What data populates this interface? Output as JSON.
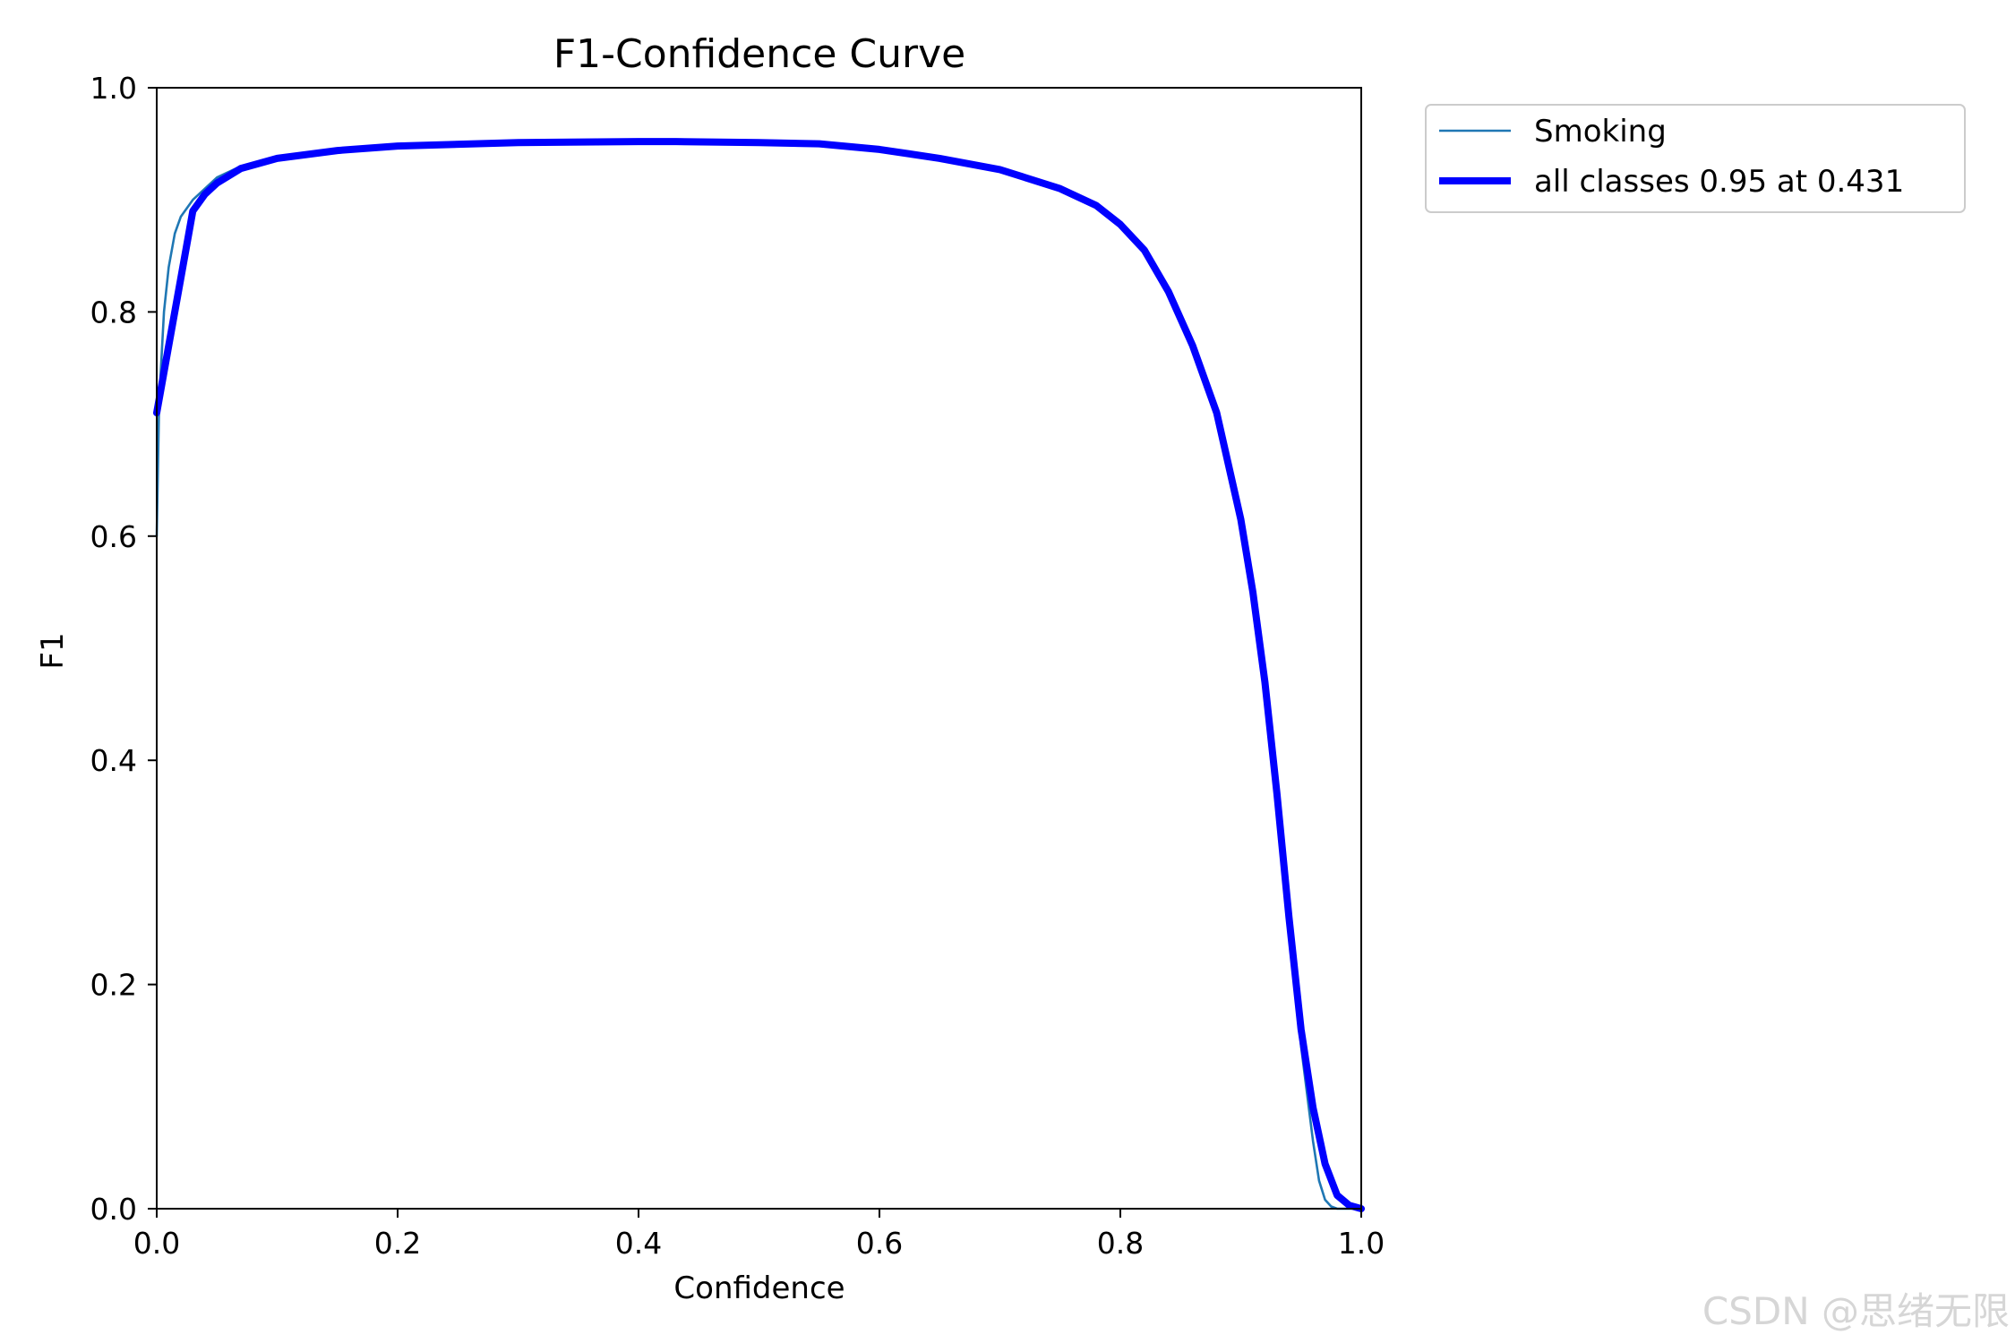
{
  "chart_data": {
    "type": "line",
    "title": "F1-Confidence Curve",
    "xlabel": "Confidence",
    "ylabel": "F1",
    "xlim": [
      0.0,
      1.0
    ],
    "ylim": [
      0.0,
      1.0
    ],
    "xticks": [
      "0.0",
      "0.2",
      "0.4",
      "0.6",
      "0.8",
      "1.0"
    ],
    "yticks": [
      "0.0",
      "0.2",
      "0.4",
      "0.6",
      "0.8",
      "1.0"
    ],
    "grid": false,
    "legend_position": "outside-top-right",
    "series": [
      {
        "name": "Smoking",
        "color": "#1f77b4",
        "linewidth": "thin",
        "x": [
          0.0,
          0.002,
          0.006,
          0.01,
          0.015,
          0.02,
          0.03,
          0.04,
          0.05,
          0.07,
          0.1,
          0.15,
          0.2,
          0.3,
          0.4,
          0.431,
          0.5,
          0.55,
          0.6,
          0.65,
          0.7,
          0.75,
          0.78,
          0.8,
          0.82,
          0.84,
          0.86,
          0.88,
          0.9,
          0.91,
          0.92,
          0.93,
          0.94,
          0.95,
          0.96,
          0.965,
          0.97,
          0.975,
          0.98,
          0.99,
          1.0
        ],
        "y": [
          0.6,
          0.72,
          0.8,
          0.84,
          0.87,
          0.885,
          0.9,
          0.91,
          0.92,
          0.93,
          0.938,
          0.945,
          0.948,
          0.951,
          0.952,
          0.952,
          0.951,
          0.95,
          0.945,
          0.937,
          0.927,
          0.91,
          0.895,
          0.878,
          0.855,
          0.818,
          0.77,
          0.71,
          0.615,
          0.55,
          0.47,
          0.37,
          0.26,
          0.145,
          0.06,
          0.025,
          0.008,
          0.002,
          0.0,
          0.0,
          0.0
        ]
      },
      {
        "name": "all classes 0.95 at 0.431",
        "color": "#0000ff",
        "linewidth": "thick",
        "x": [
          0.0,
          0.01,
          0.02,
          0.03,
          0.04,
          0.05,
          0.07,
          0.1,
          0.15,
          0.2,
          0.3,
          0.4,
          0.431,
          0.5,
          0.55,
          0.6,
          0.65,
          0.7,
          0.75,
          0.78,
          0.8,
          0.82,
          0.84,
          0.86,
          0.88,
          0.9,
          0.91,
          0.92,
          0.93,
          0.94,
          0.95,
          0.96,
          0.97,
          0.98,
          0.99,
          1.0
        ],
        "y": [
          0.71,
          0.77,
          0.83,
          0.89,
          0.905,
          0.915,
          0.928,
          0.937,
          0.944,
          0.948,
          0.951,
          0.952,
          0.952,
          0.951,
          0.95,
          0.945,
          0.937,
          0.927,
          0.91,
          0.895,
          0.878,
          0.855,
          0.818,
          0.77,
          0.71,
          0.615,
          0.55,
          0.47,
          0.37,
          0.26,
          0.16,
          0.09,
          0.04,
          0.012,
          0.003,
          0.0
        ]
      }
    ]
  },
  "watermark": "CSDN @思绪无限"
}
